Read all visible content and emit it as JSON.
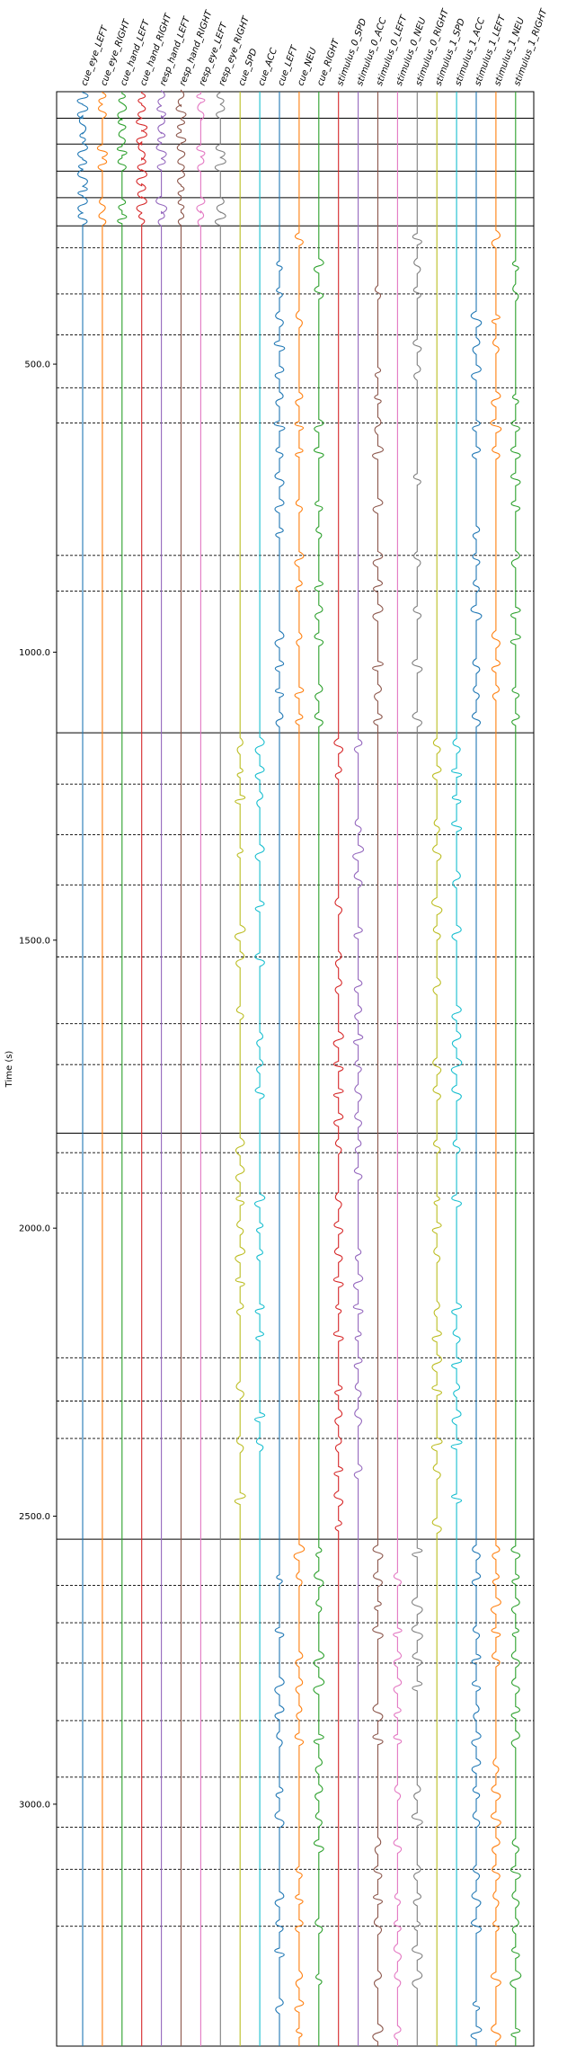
{
  "chart_data": {
    "type": "line",
    "title": "",
    "xlabel": "",
    "ylabel": "Time (s)",
    "y_axis_inverted": true,
    "ylim": [
      27,
      3420
    ],
    "yticks": [
      500.0,
      1000.0,
      1500.0,
      2000.0,
      2500.0,
      3000.0
    ],
    "grid": false,
    "legend": "none",
    "series": [
      {
        "name": "cue_eye_LEFT",
        "color": "#1f77b4"
      },
      {
        "name": "cue_eye_RIGHT",
        "color": "#ff7f0e"
      },
      {
        "name": "cue_hand_LEFT",
        "color": "#2ca02c"
      },
      {
        "name": "cue_hand_RIGHT",
        "color": "#d62728"
      },
      {
        "name": "resp_hand_LEFT",
        "color": "#9467bd"
      },
      {
        "name": "resp_hand_RIGHT",
        "color": "#8c564b"
      },
      {
        "name": "resp_eye_LEFT",
        "color": "#e377c2"
      },
      {
        "name": "resp_eye_RIGHT",
        "color": "#7f7f7f"
      },
      {
        "name": "cue_SPD",
        "color": "#bcbd22"
      },
      {
        "name": "cue_ACC",
        "color": "#17becf"
      },
      {
        "name": "cue_LEFT",
        "color": "#1f77b4"
      },
      {
        "name": "cue_NEU",
        "color": "#ff7f0e"
      },
      {
        "name": "cue_RIGHT",
        "color": "#2ca02c"
      },
      {
        "name": "stimulus_0_SPD",
        "color": "#d62728"
      },
      {
        "name": "stimulus_0_ACC",
        "color": "#9467bd"
      },
      {
        "name": "stimulus_0_LEFT",
        "color": "#8c564b"
      },
      {
        "name": "stimulus_0_NEU",
        "color": "#e377c2"
      },
      {
        "name": "stimulus_0_RIGHT",
        "color": "#7f7f7f"
      },
      {
        "name": "stimulus_1_SPD",
        "color": "#bcbd22"
      },
      {
        "name": "stimulus_1_ACC",
        "color": "#17becf"
      },
      {
        "name": "stimulus_1_LEFT",
        "color": "#1f77b4"
      },
      {
        "name": "stimulus_1_NEU",
        "color": "#ff7f0e"
      },
      {
        "name": "stimulus_1_RIGHT",
        "color": "#2ca02c"
      }
    ],
    "run_boundaries_s": [
      27,
      73,
      118,
      165,
      211,
      260,
      1140,
      1835,
      2540,
      3420
    ],
    "trial_boundaries_s": [
      298,
      378,
      449,
      541,
      602,
      832,
      894,
      1229,
      1317,
      1404,
      1529,
      1645,
      1716,
      1869,
      1939,
      2225,
      2300,
      2365,
      2620,
      2685,
      2755,
      2855,
      2953,
      3040,
      3113,
      3212
    ],
    "segments": [
      {
        "start": 27,
        "end": 73,
        "active": [
          0,
          1,
          2,
          3,
          4,
          5,
          6,
          7
        ]
      },
      {
        "start": 73,
        "end": 118,
        "active": [
          0,
          2,
          3,
          4,
          5
        ]
      },
      {
        "start": 118,
        "end": 165,
        "active": [
          0,
          1,
          2,
          3,
          4,
          5,
          6,
          7
        ]
      },
      {
        "start": 165,
        "end": 211,
        "active": [
          0,
          3,
          5
        ]
      },
      {
        "start": 211,
        "end": 260,
        "active": [
          0,
          1,
          2,
          3,
          4,
          5,
          6,
          7
        ]
      },
      {
        "start": 260,
        "end": 1140,
        "active": [
          10,
          11,
          12,
          15,
          17,
          20,
          21,
          22
        ]
      },
      {
        "start": 1140,
        "end": 1835,
        "active": [
          8,
          9,
          13,
          14,
          18,
          19
        ]
      },
      {
        "start": 1835,
        "end": 2540,
        "active": [
          8,
          9,
          13,
          14,
          18,
          19
        ]
      },
      {
        "start": 2540,
        "end": 3420,
        "active": [
          10,
          11,
          12,
          15,
          16,
          17,
          20,
          21,
          22
        ]
      }
    ]
  }
}
